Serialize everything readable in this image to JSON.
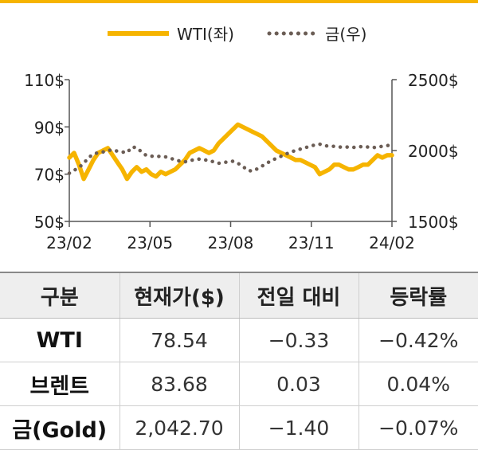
{
  "chart_data": {
    "type": "line",
    "legend": {
      "placement": "top-center"
    },
    "x_ticks": [
      "23/02",
      "23/05",
      "23/08",
      "23/11",
      "24/02"
    ],
    "left_axis": {
      "ticks": [
        "110$",
        "90$",
        "70$",
        "50$"
      ],
      "values": [
        110,
        90,
        70,
        50
      ],
      "ylim": [
        50,
        110
      ]
    },
    "right_axis": {
      "ticks": [
        "2500$",
        "2000$",
        "1500$"
      ],
      "values": [
        2500,
        2000,
        1500
      ],
      "ylim": [
        1500,
        2500
      ]
    },
    "series": [
      {
        "name": "WTI(좌)",
        "axis": "left",
        "color": "#f6b400",
        "style": "solid",
        "values": [
          77,
          79,
          74,
          68,
          72,
          76,
          79,
          80,
          81,
          78,
          75,
          72,
          68,
          71,
          73,
          71,
          72,
          70,
          69,
          71,
          70,
          71,
          72,
          74,
          76,
          79,
          80,
          81,
          80,
          79,
          80,
          83,
          85,
          87,
          89,
          91,
          90,
          89,
          88,
          87,
          86,
          84,
          82,
          80,
          79,
          78,
          77,
          76,
          76,
          75,
          74,
          73,
          70,
          71,
          72,
          74,
          74,
          73,
          72,
          72,
          73,
          74,
          74,
          76,
          78,
          77,
          78,
          78
        ]
      },
      {
        "name": "금(우)",
        "axis": "right",
        "color": "#6b5d55",
        "style": "dotted",
        "values": [
          1840,
          1860,
          1880,
          1910,
          1950,
          1975,
          1985,
          1990,
          2000,
          2005,
          1995,
          1990,
          1985,
          2025,
          2020,
          1990,
          1965,
          1960,
          1960,
          1958,
          1955,
          1945,
          1935,
          1925,
          1920,
          1930,
          1935,
          1940,
          1935,
          1930,
          1920,
          1910,
          1915,
          1920,
          1925,
          1910,
          1890,
          1860,
          1855,
          1870,
          1890,
          1910,
          1930,
          1945,
          1960,
          1975,
          1990,
          2000,
          2010,
          2020,
          2030,
          2040,
          2045,
          2035,
          2030,
          2030,
          2025,
          2025,
          2025,
          2022,
          2025,
          2030,
          2025,
          2020,
          2025,
          2030,
          2035,
          2040
        ]
      }
    ]
  },
  "table": {
    "headers": [
      "구분",
      "현재가($)",
      "전일 대비",
      "등락률"
    ],
    "rows": [
      [
        "WTI",
        "78.54",
        "−0.33",
        "−0.42%"
      ],
      [
        "브렌트",
        "83.68",
        "0.03",
        "0.04%"
      ],
      [
        "금(Gold)",
        "2,042.70",
        "−1.40",
        "−0.07%"
      ]
    ]
  },
  "colors": {
    "accent": "#f6b400",
    "gold_line": "#6b5d55",
    "header_bg": "#eeeeee"
  }
}
